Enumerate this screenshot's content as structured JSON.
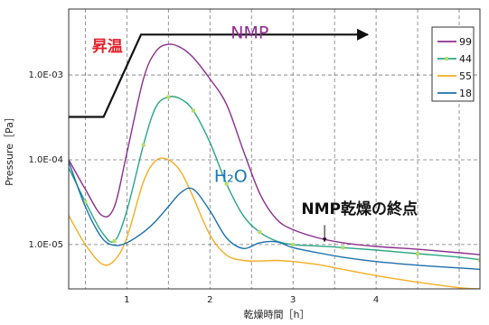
{
  "chart_data": {
    "type": "line",
    "xlabel": "乾燥時間［h］",
    "ylabel": "Pressure［Pa］",
    "xlim": [
      0.3,
      5.25
    ],
    "ylim_log": [
      3e-06,
      0.006
    ],
    "x_ticks": [
      {
        "value": 1,
        "label": "1"
      },
      {
        "value": 2,
        "label": "2"
      },
      {
        "value": 3,
        "label": "3"
      },
      {
        "value": 4,
        "label": "4"
      }
    ],
    "y_ticks": [
      {
        "value": 1e-05,
        "label": "1.0E-05"
      },
      {
        "value": 0.0001,
        "label": "1.0E-04"
      },
      {
        "value": 0.001,
        "label": "1.0E-03"
      }
    ],
    "grid": true,
    "legend_position": "top-right",
    "series": [
      {
        "name": "99",
        "color": "#8b2e8e",
        "markers": false,
        "x": [
          0.3,
          0.5,
          0.7,
          0.85,
          1.0,
          1.2,
          1.35,
          1.5,
          1.65,
          1.8,
          2.0,
          2.2,
          2.4,
          2.6,
          2.8,
          3.0,
          3.3,
          3.6,
          4.0,
          4.5,
          5.0,
          5.25
        ],
        "y": [
          0.0001,
          4.5e-05,
          2.2e-05,
          2.8e-05,
          0.00012,
          0.0009,
          0.0019,
          0.0023,
          0.0021,
          0.0016,
          0.0009,
          0.00045,
          0.00013,
          4e-05,
          2e-05,
          1.5e-05,
          1.2e-05,
          1.05e-05,
          9.5e-06,
          8.8e-06,
          8e-06,
          7.6e-06
        ]
      },
      {
        "name": "44",
        "color": "#2aa585",
        "markers": true,
        "x": [
          0.3,
          0.5,
          0.7,
          0.85,
          1.0,
          1.2,
          1.35,
          1.5,
          1.65,
          1.8,
          2.0,
          2.2,
          2.4,
          2.6,
          2.8,
          3.0,
          3.3,
          3.6,
          4.0,
          4.5,
          5.0,
          5.25
        ],
        "y": [
          8e-05,
          3.2e-05,
          1.4e-05,
          1.1e-05,
          2.5e-05,
          0.00015,
          0.00042,
          0.00055,
          0.00052,
          0.00038,
          0.00016,
          5.2e-05,
          2.2e-05,
          1.4e-05,
          1.1e-05,
          1e-05,
          9.6e-06,
          9.2e-06,
          8.6e-06,
          7.8e-06,
          7.1e-06,
          6.6e-06
        ]
      },
      {
        "name": "55",
        "color": "#f3ae22",
        "markers": false,
        "x": [
          0.3,
          0.5,
          0.7,
          0.85,
          1.0,
          1.2,
          1.35,
          1.5,
          1.65,
          1.8,
          2.0,
          2.2,
          2.4,
          2.6,
          2.8,
          3.0,
          3.3,
          3.6,
          4.0,
          4.5,
          5.0,
          5.25
        ],
        "y": [
          2.2e-05,
          1e-05,
          5.9e-06,
          6.5e-06,
          1.2e-05,
          5.5e-05,
          9.8e-05,
          0.0001,
          7.2e-05,
          3.6e-05,
          1.3e-05,
          7.5e-06,
          6.5e-06,
          6.4e-06,
          6.5e-06,
          6.3e-06,
          5.8e-06,
          5.1e-06,
          4.3e-06,
          3.6e-06,
          3.1e-06,
          3e-06
        ]
      },
      {
        "name": "18",
        "color": "#1a6fad",
        "markers": false,
        "x": [
          0.3,
          0.5,
          0.7,
          0.85,
          1.0,
          1.2,
          1.35,
          1.5,
          1.65,
          1.8,
          2.0,
          2.2,
          2.4,
          2.6,
          2.8,
          3.0,
          3.3,
          3.6,
          4.0,
          4.5,
          5.0,
          5.25
        ],
        "y": [
          9.5e-05,
          2.8e-05,
          1.2e-05,
          9.8e-06,
          1.05e-05,
          1.4e-05,
          1.9e-05,
          2.8e-05,
          4.1e-05,
          4.5e-05,
          2.5e-05,
          1.2e-05,
          9e-06,
          1.05e-05,
          1.08e-05,
          9.2e-06,
          8e-06,
          7.1e-06,
          6.3e-06,
          5.7e-06,
          5.3e-06,
          5.1e-06
        ]
      }
    ],
    "temperature_profile": {
      "label": "昇温",
      "color": "#111111",
      "x": [
        0.3,
        0.72,
        1.17,
        3.9
      ],
      "y": [
        0.00032,
        0.00032,
        0.003,
        0.003
      ]
    },
    "annotations": [
      {
        "text": "昇温",
        "x": 0.58,
        "y": 0.0019,
        "style": "red"
      },
      {
        "text": "NMP",
        "x": 2.25,
        "y": 0.0027,
        "style": "purple"
      },
      {
        "text": "H₂O",
        "x": 2.05,
        "y": 5.5e-05,
        "style": "blue"
      },
      {
        "text": "NMP乾燥の終点",
        "x": 3.1,
        "y": 2.3e-05,
        "style": "black"
      }
    ],
    "endpoint_arrow": {
      "x": 3.38,
      "y_from": 1.7e-05,
      "y_to": 1.08e-05
    }
  }
}
